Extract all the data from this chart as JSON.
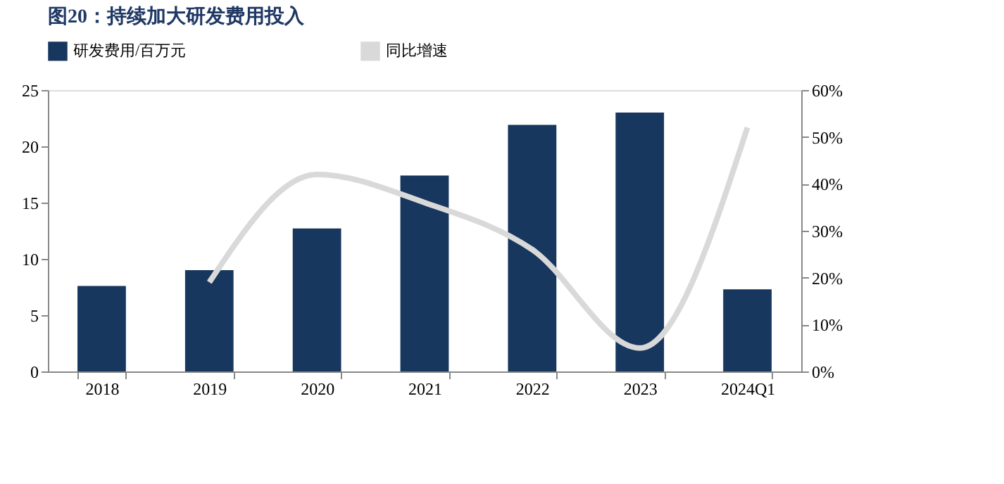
{
  "chart_data": {
    "type": "bar",
    "title": "图20：持续加大研发费用投入",
    "categories": [
      "2018",
      "2019",
      "2020",
      "2021",
      "2022",
      "2023",
      "2024Q1"
    ],
    "series": [
      {
        "name": "研发费用/百万元",
        "color": "#17375e",
        "values": [
          7.6,
          9.0,
          12.7,
          17.4,
          21.9,
          23.0,
          7.3
        ]
      },
      {
        "name": "同比增速",
        "color": "#d9d9d9",
        "type": "line",
        "axis": "y2",
        "values": [
          null,
          19,
          42,
          36,
          26,
          5,
          52
        ]
      }
    ],
    "ylim": [
      0,
      25
    ],
    "yticks": [
      0,
      5,
      10,
      15,
      20,
      25
    ],
    "y2lim": [
      0,
      60
    ],
    "y2ticks": [
      {
        "value": 0,
        "label": "0%"
      },
      {
        "value": 10,
        "label": "10%"
      },
      {
        "value": 20,
        "label": "20%"
      },
      {
        "value": 30,
        "label": "30%"
      },
      {
        "value": 40,
        "label": "40%"
      },
      {
        "value": 50,
        "label": "50%"
      },
      {
        "value": 60,
        "label": "60%"
      }
    ],
    "grid": false,
    "legend": "top",
    "line_style": "solid",
    "marker": "none"
  }
}
